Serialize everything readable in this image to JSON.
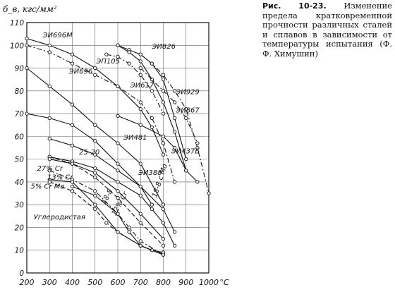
{
  "caption": {
    "label": "Рис. 10-23.",
    "text": "Изменение предела кратковременной прочности различных сталей и сплавов в зависимости от температуры испытания (Ф. Ф. Химушин)"
  },
  "chart_data": {
    "type": "line",
    "ylabel": "б_в, кгс/мм²",
    "xunit": "°С",
    "xlim": [
      200,
      1000
    ],
    "ylim": [
      0,
      110
    ],
    "xticks": [
      200,
      300,
      400,
      500,
      600,
      700,
      800,
      900,
      1000
    ],
    "yticks": [
      0,
      10,
      20,
      30,
      40,
      50,
      60,
      70,
      80,
      90,
      100,
      110
    ],
    "grid": true,
    "series": [
      {
        "name": "ЭИ696М",
        "style": "solid",
        "x": [
          200,
          300,
          400,
          500,
          600,
          700,
          750,
          800
        ],
        "y": [
          103,
          100,
          96,
          90,
          82,
          72,
          64,
          52
        ]
      },
      {
        "name": "ЭИ826",
        "style": "solid",
        "x": [
          600,
          650,
          700,
          750,
          800,
          850,
          900
        ],
        "y": [
          100,
          98,
          96,
          92,
          85,
          68,
          50
        ]
      },
      {
        "name": "ЭП105",
        "style": "dashdot",
        "x": [
          550,
          600,
          650,
          700,
          750,
          800
        ],
        "y": [
          96,
          95,
          92,
          87,
          80,
          70
        ]
      },
      {
        "name": "ЭИ696",
        "style": "dashdot",
        "x": [
          200,
          300,
          400,
          500,
          600,
          700,
          750,
          800,
          850
        ],
        "y": [
          100,
          97,
          92,
          87,
          82,
          75,
          68,
          57,
          40
        ]
      },
      {
        "name": "ЭИ617",
        "style": "solid",
        "x": [
          600,
          650,
          700,
          750,
          800,
          850,
          900
        ],
        "y": [
          100,
          97,
          93,
          85,
          75,
          62,
          45
        ]
      },
      {
        "name": "ЭИ929",
        "style": "dashdot",
        "x": [
          700,
          750,
          800,
          850,
          900,
          950,
          1000
        ],
        "y": [
          96,
          92,
          87,
          80,
          72,
          55,
          35
        ]
      },
      {
        "name": "ЭИ867",
        "style": "dashdot",
        "x": [
          700,
          800,
          850,
          900,
          950
        ],
        "y": [
          90,
          80,
          75,
          68,
          57
        ]
      },
      {
        "name": "ЭИ481",
        "style": "solid",
        "x": [
          200,
          300,
          400,
          500,
          600,
          700,
          800
        ],
        "y": [
          90,
          82,
          74,
          65,
          57,
          48,
          30
        ]
      },
      {
        "name": "ЭИ437Б",
        "style": "solid",
        "x": [
          600,
          700,
          800,
          850,
          900,
          950
        ],
        "y": [
          69,
          65,
          60,
          55,
          45,
          40
        ]
      },
      {
        "name": "ЭИ388",
        "style": "solid",
        "x": [
          200,
          300,
          400,
          500,
          600,
          700,
          750
        ],
        "y": [
          70,
          68,
          65,
          58,
          48,
          38,
          30
        ]
      },
      {
        "name": "25-20",
        "style": "solid",
        "x": [
          300,
          400,
          500,
          600,
          700,
          800,
          850
        ],
        "y": [
          59,
          56,
          52,
          45,
          38,
          28,
          18
        ]
      },
      {
        "name": "18-8 с Mo",
        "style": "solid",
        "x": [
          300,
          400,
          500,
          600,
          700,
          750,
          800,
          850
        ],
        "y": [
          51,
          49,
          46,
          40,
          34,
          28,
          22,
          12
        ]
      },
      {
        "name": "27% Cr",
        "style": "dashed",
        "x": [
          300,
          400,
          500,
          600,
          700,
          800
        ],
        "y": [
          51,
          48,
          42,
          33,
          22,
          12
        ]
      },
      {
        "name": "18-8",
        "style": "solid",
        "x": [
          300,
          400,
          500,
          600,
          700,
          800
        ],
        "y": [
          50,
          48,
          44,
          36,
          26,
          15
        ]
      },
      {
        "name": "13% Cr",
        "style": "dashdot",
        "x": [
          300,
          400,
          500,
          600,
          650,
          700,
          800
        ],
        "y": [
          45,
          41,
          36,
          26,
          20,
          14,
          8
        ]
      },
      {
        "name": "12% Cr",
        "style": "solid",
        "x": [
          400,
          500,
          600,
          650,
          700,
          800
        ],
        "y": [
          38,
          34,
          26,
          18,
          12,
          8
        ]
      },
      {
        "name": "5% Cr Mo",
        "style": "solid",
        "x": [
          300,
          400,
          500,
          600,
          700,
          750,
          800
        ],
        "y": [
          41,
          40,
          30,
          18,
          12,
          10,
          9
        ]
      },
      {
        "name": "Углеродистая",
        "style": "dashed",
        "x": [
          300,
          400,
          500,
          550,
          600,
          700,
          800
        ],
        "y": [
          40,
          36,
          28,
          22,
          18,
          12,
          8
        ]
      }
    ],
    "labels": [
      {
        "text": "ЭИ696М",
        "x": 270,
        "y": 103.5
      },
      {
        "text": "ЭИ826",
        "x": 750,
        "y": 98.5
      },
      {
        "text": "ЭП105",
        "x": 505,
        "y": 92
      },
      {
        "text": "ЭИ696",
        "x": 385,
        "y": 87.5
      },
      {
        "text": "ЭИ617",
        "x": 655,
        "y": 81.5
      },
      {
        "text": "ЭИ929",
        "x": 855,
        "y": 78.5
      },
      {
        "text": "ЭИ867",
        "x": 855,
        "y": 70.5
      },
      {
        "text": "ЭИ481",
        "x": 625,
        "y": 58.5
      },
      {
        "text": "ЭИ437Б",
        "x": 835,
        "y": 52.5
      },
      {
        "text": "25-20",
        "x": 430,
        "y": 52
      },
      {
        "text": "ЭИ388",
        "x": 690,
        "y": 43
      },
      {
        "text": "27% Cr",
        "x": 245,
        "y": 45
      },
      {
        "text": "13% Cr",
        "x": 290,
        "y": 41
      },
      {
        "text": "5% Cr Mo",
        "x": 217,
        "y": 37
      },
      {
        "text": "18-8 с Mo",
        "x": 770,
        "y": 33,
        "rotate": -72
      },
      {
        "text": "18-8",
        "x": 545,
        "y": 30,
        "rotate": -62
      },
      {
        "text": "12% Cr",
        "x": 590,
        "y": 25,
        "rotate": -62
      },
      {
        "text": "Углеродистая",
        "x": 230,
        "y": 23.5
      }
    ]
  }
}
